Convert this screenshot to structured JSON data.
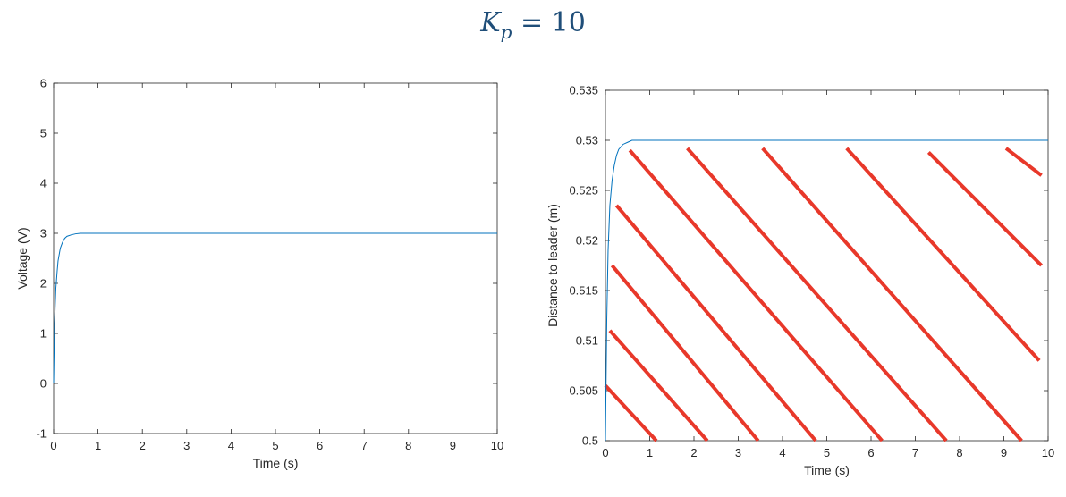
{
  "title": {
    "symbol": "K",
    "subscript": "p",
    "rest": " = 10"
  },
  "chart_data": [
    {
      "type": "line",
      "xlabel": "Time (s)",
      "ylabel": "Voltage (V)",
      "xlim": [
        0,
        10
      ],
      "ylim": [
        -1,
        6
      ],
      "xticks": [
        "0",
        "1",
        "2",
        "3",
        "4",
        "5",
        "6",
        "7",
        "8",
        "9",
        "10"
      ],
      "yticks": [
        "-1",
        "0",
        "1",
        "2",
        "3",
        "4",
        "5",
        "6"
      ],
      "grid": false,
      "series": [
        {
          "color": "#0072bd",
          "x": [
            0,
            0.02,
            0.05,
            0.08,
            0.1,
            0.15,
            0.2,
            0.25,
            0.3,
            0.4,
            0.5,
            0.6,
            0.7,
            1,
            2,
            3,
            4,
            5,
            6,
            7,
            8,
            9,
            10
          ],
          "y": [
            0,
            1.2,
            1.9,
            2.25,
            2.45,
            2.7,
            2.82,
            2.9,
            2.94,
            2.97,
            2.99,
            3.0,
            3.0,
            3.0,
            3.0,
            3.0,
            3.0,
            3.0,
            3.0,
            3.0,
            3.0,
            3.0,
            3.0
          ]
        }
      ]
    },
    {
      "type": "line",
      "xlabel": "Time (s)",
      "ylabel": "Distance to leader (m)",
      "xlim": [
        0,
        10
      ],
      "ylim": [
        0.5,
        0.535
      ],
      "xticks": [
        "0",
        "1",
        "2",
        "3",
        "4",
        "5",
        "6",
        "7",
        "8",
        "9",
        "10"
      ],
      "yticks": [
        "0.5",
        "0.505",
        "0.51",
        "0.515",
        "0.52",
        "0.525",
        "0.53",
        "0.535"
      ],
      "grid": false,
      "series": [
        {
          "color": "#0072bd",
          "x": [
            0,
            0.03,
            0.06,
            0.1,
            0.15,
            0.2,
            0.25,
            0.3,
            0.4,
            0.5,
            0.6,
            0.8,
            1,
            2,
            3,
            4,
            5,
            6,
            7,
            8,
            9,
            10
          ],
          "y": [
            0.5,
            0.512,
            0.519,
            0.5235,
            0.526,
            0.5275,
            0.5285,
            0.5291,
            0.5296,
            0.5298,
            0.53,
            0.53,
            0.53,
            0.53,
            0.53,
            0.53,
            0.53,
            0.53,
            0.53,
            0.53,
            0.53,
            0.53
          ]
        }
      ],
      "annotations": {
        "type": "hatch-lines",
        "color": "#e8382a",
        "lines": [
          [
            [
              0,
              0.5055
            ],
            [
              1.15,
              0.5
            ]
          ],
          [
            [
              0.1,
              0.511
            ],
            [
              2.3,
              0.5
            ]
          ],
          [
            [
              0.15,
              0.5175
            ],
            [
              3.45,
              0.5
            ]
          ],
          [
            [
              0.25,
              0.5235
            ],
            [
              4.75,
              0.5
            ]
          ],
          [
            [
              0.55,
              0.529
            ],
            [
              6.25,
              0.5
            ]
          ],
          [
            [
              1.85,
              0.5292
            ],
            [
              7.7,
              0.5
            ]
          ],
          [
            [
              3.55,
              0.5292
            ],
            [
              9.4,
              0.5
            ]
          ],
          [
            [
              5.45,
              0.5292
            ],
            [
              9.8,
              0.508
            ]
          ],
          [
            [
              7.3,
              0.5288
            ],
            [
              9.85,
              0.5175
            ]
          ],
          [
            [
              9.05,
              0.5292
            ],
            [
              9.85,
              0.5265
            ]
          ]
        ]
      }
    }
  ]
}
